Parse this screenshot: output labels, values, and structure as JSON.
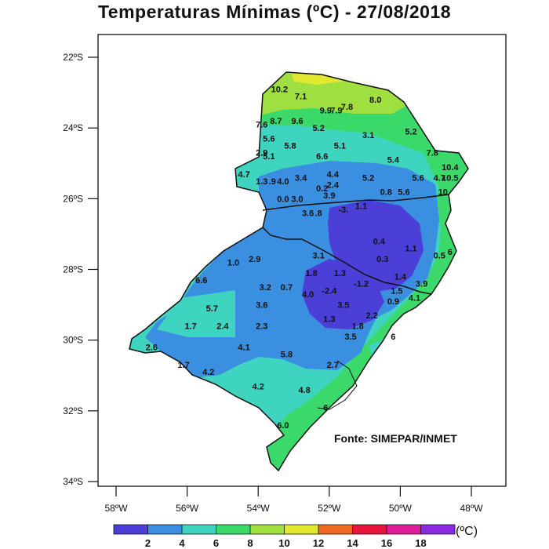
{
  "title": "Temperaturas  Mínimas  (ºC)  - 27/08/2018",
  "source": "Fonte: SIMEPAR/INMET",
  "lat_ticks": [
    "22ºS",
    "24ºS",
    "26ºS",
    "28ºS",
    "30ºS",
    "32ºS",
    "34ºS"
  ],
  "lon_ticks": [
    "58ºW",
    "56ºW",
    "54ºW",
    "52ºW",
    "50ºW",
    "48ºW"
  ],
  "colorbar": {
    "unit": "(ºC)",
    "labels": [
      "2",
      "4",
      "6",
      "8",
      "10",
      "12",
      "14",
      "16",
      "18"
    ],
    "colors": [
      "#4b3fd8",
      "#3b8fe0",
      "#3fd4c0",
      "#3ad96a",
      "#9fe040",
      "#e2e830",
      "#ee6a22",
      "#e8143c",
      "#e01e9a",
      "#8a2ae0"
    ]
  },
  "values": [
    {
      "text": "10.2",
      "lon": -53.4,
      "lat": -22.9
    },
    {
      "text": "7.1",
      "lon": -52.8,
      "lat": -23.1
    },
    {
      "text": "9.9",
      "lon": -52.1,
      "lat": -23.5
    },
    {
      "text": "7.9",
      "lon": -51.8,
      "lat": -23.5
    },
    {
      "text": "7.8",
      "lon": -51.5,
      "lat": -23.4
    },
    {
      "text": "8.0",
      "lon": -50.7,
      "lat": -23.2
    },
    {
      "text": "7.6",
      "lon": -53.9,
      "lat": -23.9
    },
    {
      "text": "8.7",
      "lon": -53.5,
      "lat": -23.8
    },
    {
      "text": "9.6",
      "lon": -52.9,
      "lat": -23.8
    },
    {
      "text": "5.2",
      "lon": -52.3,
      "lat": -24.0
    },
    {
      "text": "5.2",
      "lon": -49.7,
      "lat": -24.1
    },
    {
      "text": "5.6",
      "lon": -53.7,
      "lat": -24.3
    },
    {
      "text": "5.8",
      "lon": -53.1,
      "lat": -24.5
    },
    {
      "text": "3.1",
      "lon": -50.9,
      "lat": -24.2
    },
    {
      "text": "5.1",
      "lon": -51.7,
      "lat": -24.5
    },
    {
      "text": "7.8",
      "lon": -49.1,
      "lat": -24.7
    },
    {
      "text": "2.9",
      "lon": -53.9,
      "lat": -24.7
    },
    {
      "text": "5.1",
      "lon": -53.7,
      "lat": -24.8
    },
    {
      "text": "6.6",
      "lon": -52.2,
      "lat": -24.8
    },
    {
      "text": "5.4",
      "lon": -50.2,
      "lat": -24.9
    },
    {
      "text": "10.4",
      "lon": -48.6,
      "lat": -25.1
    },
    {
      "text": "4.7",
      "lon": -54.4,
      "lat": -25.3
    },
    {
      "text": "1.3",
      "lon": -53.9,
      "lat": -25.5
    },
    {
      "text": ".9",
      "lon": -53.6,
      "lat": -25.5
    },
    {
      "text": "4.0",
      "lon": -53.3,
      "lat": -25.5
    },
    {
      "text": "3.4",
      "lon": -52.8,
      "lat": -25.4
    },
    {
      "text": "4.4",
      "lon": -51.9,
      "lat": -25.3
    },
    {
      "text": "0.2",
      "lon": -52.2,
      "lat": -25.7
    },
    {
      "text": "2.4",
      "lon": -51.9,
      "lat": -25.6
    },
    {
      "text": "5.2",
      "lon": -50.9,
      "lat": -25.4
    },
    {
      "text": "5.6",
      "lon": -49.5,
      "lat": -25.4
    },
    {
      "text": "4.7",
      "lon": -48.9,
      "lat": -25.4
    },
    {
      "text": "10.5",
      "lon": -48.6,
      "lat": -25.4
    },
    {
      "text": "10",
      "lon": -48.8,
      "lat": -25.8
    },
    {
      "text": "0.8",
      "lon": -50.4,
      "lat": -25.8
    },
    {
      "text": "5.6",
      "lon": -49.9,
      "lat": -25.8
    },
    {
      "text": "0.0",
      "lon": -53.3,
      "lat": -26.0
    },
    {
      "text": "3.0",
      "lon": -52.9,
      "lat": -26.0
    },
    {
      "text": "3.9",
      "lon": -52.0,
      "lat": -25.9
    },
    {
      "text": "3.6",
      "lon": -52.6,
      "lat": -26.4
    },
    {
      "text": ".8",
      "lon": -52.3,
      "lat": -26.4
    },
    {
      "text": "-3.",
      "lon": -51.6,
      "lat": -26.3
    },
    {
      "text": "1.1",
      "lon": -51.1,
      "lat": -26.2
    },
    {
      "text": "0.4",
      "lon": -50.6,
      "lat": -27.2
    },
    {
      "text": "1.1",
      "lon": -49.7,
      "lat": -27.4
    },
    {
      "text": "3.1",
      "lon": -52.3,
      "lat": -27.6
    },
    {
      "text": "0.5",
      "lon": -48.9,
      "lat": -27.6
    },
    {
      "text": "6",
      "lon": -48.6,
      "lat": -27.5
    },
    {
      "text": "1.0",
      "lon": -54.7,
      "lat": -27.8
    },
    {
      "text": "2.9",
      "lon": -54.1,
      "lat": -27.7
    },
    {
      "text": "0.3",
      "lon": -50.5,
      "lat": -27.7
    },
    {
      "text": "1.8",
      "lon": -52.5,
      "lat": -28.1
    },
    {
      "text": "1.3",
      "lon": -51.7,
      "lat": -28.1
    },
    {
      "text": "1.4",
      "lon": -50.0,
      "lat": -28.2
    },
    {
      "text": "6.6",
      "lon": -55.6,
      "lat": -28.3
    },
    {
      "text": "3.2",
      "lon": -53.8,
      "lat": -28.5
    },
    {
      "text": "0.7",
      "lon": -53.2,
      "lat": -28.5
    },
    {
      "text": "-1.2",
      "lon": -51.1,
      "lat": -28.4
    },
    {
      "text": "3.9",
      "lon": -49.4,
      "lat": -28.4
    },
    {
      "text": "1.5",
      "lon": -50.1,
      "lat": -28.6
    },
    {
      "text": "4.0",
      "lon": -52.6,
      "lat": -28.7
    },
    {
      "text": "-2.4",
      "lon": -52.0,
      "lat": -28.6
    },
    {
      "text": "4.1",
      "lon": -49.6,
      "lat": -28.8
    },
    {
      "text": "5.7",
      "lon": -55.3,
      "lat": -29.1
    },
    {
      "text": "3.6",
      "lon": -53.9,
      "lat": -29.0
    },
    {
      "text": "3.5",
      "lon": -51.6,
      "lat": -29.0
    },
    {
      "text": "0.9",
      "lon": -50.2,
      "lat": -28.9
    },
    {
      "text": "2.2",
      "lon": -50.8,
      "lat": -29.3
    },
    {
      "text": "1.3",
      "lon": -52.0,
      "lat": -29.4
    },
    {
      "text": "1.8",
      "lon": -51.2,
      "lat": -29.6
    },
    {
      "text": "1.7",
      "lon": -55.9,
      "lat": -29.6
    },
    {
      "text": "2.4",
      "lon": -55.0,
      "lat": -29.6
    },
    {
      "text": "2.3",
      "lon": -53.9,
      "lat": -29.6
    },
    {
      "text": "3.5",
      "lon": -51.4,
      "lat": -29.9
    },
    {
      "text": "6",
      "lon": -50.2,
      "lat": -29.9
    },
    {
      "text": "2.6",
      "lon": -57.0,
      "lat": -30.2
    },
    {
      "text": "4.1",
      "lon": -54.4,
      "lat": -30.2
    },
    {
      "text": "5.8",
      "lon": -53.2,
      "lat": -30.4
    },
    {
      "text": "1.7",
      "lon": -56.1,
      "lat": -30.7
    },
    {
      "text": "4.2",
      "lon": -55.4,
      "lat": -30.9
    },
    {
      "text": "2.7",
      "lon": -51.9,
      "lat": -30.7
    },
    {
      "text": "4.2",
      "lon": -54.0,
      "lat": -31.3
    },
    {
      "text": "4.8",
      "lon": -52.7,
      "lat": -31.4
    },
    {
      "text": "6",
      "lon": -52.1,
      "lat": -31.9
    },
    {
      "text": "6.0",
      "lon": -53.3,
      "lat": -32.4
    }
  ]
}
